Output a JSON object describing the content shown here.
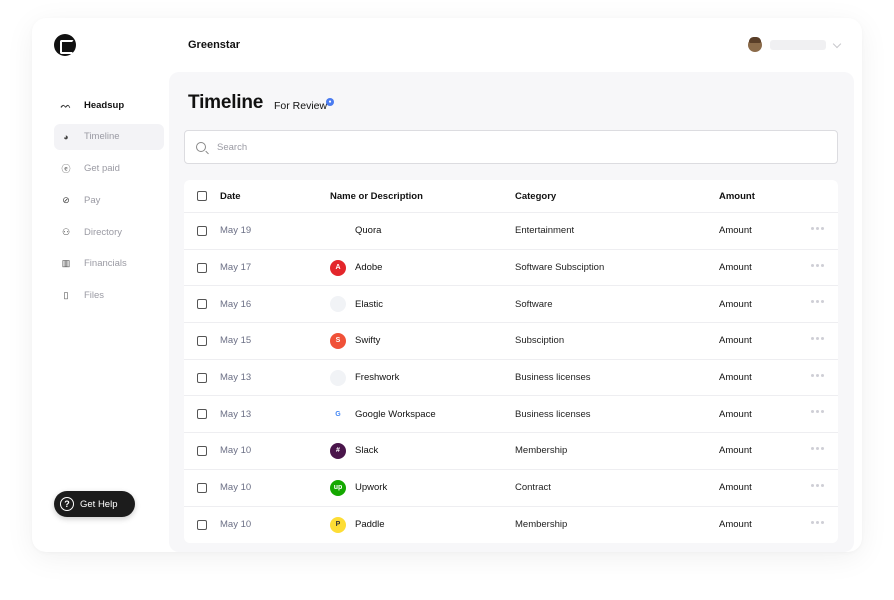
{
  "header": {
    "org_name": "Greenstar"
  },
  "sidebar": {
    "items": [
      {
        "label": "Headsup",
        "icon": "headsup-icon"
      },
      {
        "label": "Timeline",
        "icon": "timeline-icon"
      },
      {
        "label": "Get paid",
        "icon": "get-paid-icon"
      },
      {
        "label": "Pay",
        "icon": "pay-icon"
      },
      {
        "label": "Directory",
        "icon": "directory-icon"
      },
      {
        "label": "Financials",
        "icon": "financials-icon"
      },
      {
        "label": "Files",
        "icon": "files-icon"
      }
    ],
    "help_label": "Get Help"
  },
  "main": {
    "title": "Timeline",
    "subtitle": "For Review",
    "search_placeholder": "Search",
    "table": {
      "headers": {
        "date": "Date",
        "name": "Name or Description",
        "category": "Category",
        "amount": "Amount"
      },
      "rows": [
        {
          "date": "May 19",
          "name": "Quora",
          "category": "Entertainment",
          "amount": "Amount",
          "color": "#ffffff",
          "glyph": ""
        },
        {
          "date": "May 17",
          "name": "Adobe",
          "category": "Software Subsciption",
          "amount": "Amount",
          "color": "#e3262b",
          "glyph": "A"
        },
        {
          "date": "May 16",
          "name": "Elastic",
          "category": "Software",
          "amount": "Amount",
          "color": "#f1f3f6",
          "glyph": ""
        },
        {
          "date": "May 15",
          "name": "Swifty",
          "category": "Subsciption",
          "amount": "Amount",
          "color": "#f05138",
          "glyph": "S"
        },
        {
          "date": "May 13",
          "name": "Freshwork",
          "category": "Business licenses",
          "amount": "Amount",
          "color": "#f1f3f6",
          "glyph": ""
        },
        {
          "date": "May 13",
          "name": "Google Workspace",
          "category": "Business licenses",
          "amount": "Amount",
          "color": "#ffffff",
          "glyph": "G"
        },
        {
          "date": "May 10",
          "name": "Slack",
          "category": "Membership",
          "amount": "Amount",
          "color": "#4a154b",
          "glyph": "#"
        },
        {
          "date": "May 10",
          "name": "Upwork",
          "category": "Contract",
          "amount": "Amount",
          "color": "#14a800",
          "glyph": "up"
        },
        {
          "date": "May 10",
          "name": "Paddle",
          "category": "Membership",
          "amount": "Amount",
          "color": "#fddd35",
          "glyph": "P"
        }
      ]
    }
  }
}
